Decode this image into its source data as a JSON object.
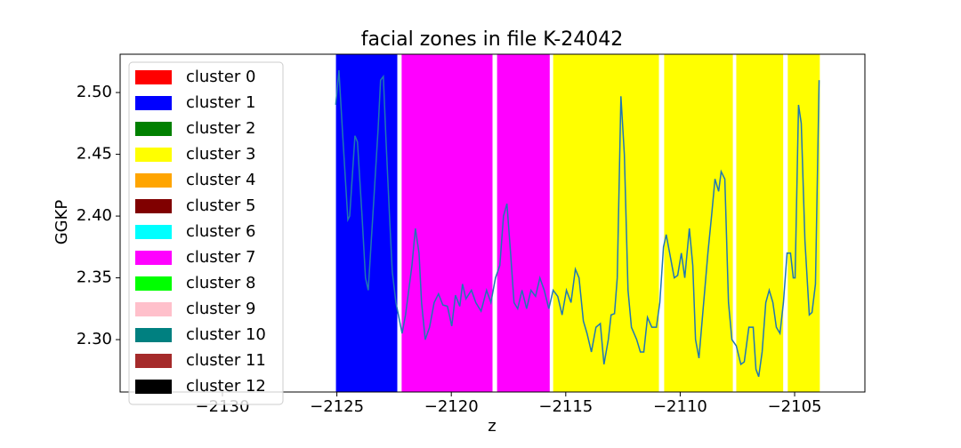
{
  "chart_data": {
    "type": "line",
    "title": "facial zones in file K-24042",
    "xlabel": "z",
    "ylabel": "GGKP",
    "xlim": [
      -2134.47,
      -2101.93
    ],
    "ylim": [
      2.2576,
      2.531
    ],
    "xticks": [
      {
        "value": -2130,
        "label": "−2130"
      },
      {
        "value": -2125,
        "label": "−2125"
      },
      {
        "value": -2120,
        "label": "−2120"
      },
      {
        "value": -2115,
        "label": "−2115"
      },
      {
        "value": -2110,
        "label": "−2110"
      },
      {
        "value": -2105,
        "label": "−2105"
      }
    ],
    "yticks": [
      {
        "value": 2.3,
        "label": "2.30"
      },
      2.35,
      {
        "value": 2.4,
        "label": "2.40"
      },
      2.45,
      {
        "value": 2.5,
        "label": "2.50"
      }
    ],
    "legend_loc": "upper left",
    "legend": [
      {
        "name": "cluster 0",
        "color": "#ff0000"
      },
      {
        "name": "cluster 1",
        "color": "#0000ff"
      },
      {
        "name": "cluster 2",
        "color": "#008000"
      },
      {
        "name": "cluster 3",
        "color": "#ffff00"
      },
      {
        "name": "cluster 4",
        "color": "#ffa500"
      },
      {
        "name": "cluster 5",
        "color": "#800000"
      },
      {
        "name": "cluster 6",
        "color": "#00ffff"
      },
      {
        "name": "cluster 7",
        "color": "#ff00ff"
      },
      {
        "name": "cluster 8",
        "color": "#00ff00"
      },
      {
        "name": "cluster 9",
        "color": "#ffc0cb"
      },
      {
        "name": "cluster 10",
        "color": "#008080"
      },
      {
        "name": "cluster 11",
        "color": "#a52a2a"
      },
      {
        "name": "cluster 12",
        "color": "#000000"
      }
    ],
    "zones": [
      {
        "x0": -2125.04,
        "x1": -2122.36,
        "cluster": 1
      },
      {
        "x0": -2122.17,
        "x1": -2118.2,
        "cluster": 7
      },
      {
        "x0": -2118.0,
        "x1": -2115.7,
        "cluster": 7
      },
      {
        "x0": -2115.55,
        "x1": -2110.93,
        "cluster": 3
      },
      {
        "x0": -2110.7,
        "x1": -2107.7,
        "cluster": 3
      },
      {
        "x0": -2107.55,
        "x1": -2105.5,
        "cluster": 3
      },
      {
        "x0": -2105.3,
        "x1": -2103.9,
        "cluster": 3
      }
    ],
    "x": [
      -2125.05,
      -2124.91,
      -2124.76,
      -2124.52,
      -2124.44,
      -2124.21,
      -2124.1,
      -2123.9,
      -2123.75,
      -2123.63,
      -2123.43,
      -2123.2,
      -2123.09,
      -2122.97,
      -2122.85,
      -2122.7,
      -2122.58,
      -2122.42,
      -2122.15,
      -2122.0,
      -2121.72,
      -2121.57,
      -2121.41,
      -2121.3,
      -2121.14,
      -2120.95,
      -2120.75,
      -2120.56,
      -2120.37,
      -2120.17,
      -2119.98,
      -2119.82,
      -2119.63,
      -2119.51,
      -2119.36,
      -2119.12,
      -2118.93,
      -2118.7,
      -2118.46,
      -2118.27,
      -2118.07,
      -2117.88,
      -2117.72,
      -2117.57,
      -2117.41,
      -2117.26,
      -2117.1,
      -2116.91,
      -2116.71,
      -2116.52,
      -2116.32,
      -2116.13,
      -2115.94,
      -2115.74,
      -2115.55,
      -2115.35,
      -2115.16,
      -2114.97,
      -2114.77,
      -2114.58,
      -2114.42,
      -2114.23,
      -2114.07,
      -2113.88,
      -2113.68,
      -2113.49,
      -2113.33,
      -2113.14,
      -2113.02,
      -2112.87,
      -2112.75,
      -2112.59,
      -2112.44,
      -2112.28,
      -2112.13,
      -2111.9,
      -2111.74,
      -2111.59,
      -2111.43,
      -2111.24,
      -2111.04,
      -2110.89,
      -2110.73,
      -2110.61,
      -2110.46,
      -2110.26,
      -2110.11,
      -2109.95,
      -2109.8,
      -2109.6,
      -2109.45,
      -2109.33,
      -2109.18,
      -2109.02,
      -2108.79,
      -2108.63,
      -2108.48,
      -2108.32,
      -2108.21,
      -2108.05,
      -2107.89,
      -2107.74,
      -2107.55,
      -2107.35,
      -2107.2,
      -2107.0,
      -2106.81,
      -2106.69,
      -2106.57,
      -2106.42,
      -2106.26,
      -2106.11,
      -2105.95,
      -2105.8,
      -2105.64,
      -2105.49,
      -2105.33,
      -2105.18,
      -2105.06,
      -2104.98,
      -2104.83,
      -2104.71,
      -2104.55,
      -2104.36,
      -2104.24,
      -2104.09,
      -2103.93
    ],
    "series": [
      {
        "color": "#1f77b4",
        "values": [
          2.49,
          2.518,
          2.47,
          2.397,
          2.4,
          2.465,
          2.46,
          2.4,
          2.35,
          2.34,
          2.4,
          2.47,
          2.51,
          2.513,
          2.46,
          2.4,
          2.355,
          2.33,
          2.305,
          2.32,
          2.36,
          2.39,
          2.37,
          2.33,
          2.3,
          2.31,
          2.33,
          2.337,
          2.328,
          2.327,
          2.311,
          2.336,
          2.327,
          2.345,
          2.333,
          2.34,
          2.33,
          2.323,
          2.34,
          2.33,
          2.35,
          2.36,
          2.4,
          2.41,
          2.37,
          2.33,
          2.325,
          2.34,
          2.325,
          2.34,
          2.335,
          2.35,
          2.34,
          2.325,
          2.34,
          2.335,
          2.32,
          2.34,
          2.33,
          2.357,
          2.35,
          2.315,
          2.305,
          2.29,
          2.31,
          2.313,
          2.28,
          2.3,
          2.32,
          2.321,
          2.35,
          2.497,
          2.45,
          2.34,
          2.31,
          2.3,
          2.29,
          2.29,
          2.318,
          2.31,
          2.31,
          2.33,
          2.375,
          2.385,
          2.37,
          2.35,
          2.352,
          2.37,
          2.35,
          2.39,
          2.36,
          2.3,
          2.285,
          2.32,
          2.37,
          2.4,
          2.43,
          2.42,
          2.436,
          2.43,
          2.33,
          2.3,
          2.295,
          2.28,
          2.282,
          2.31,
          2.31,
          2.276,
          2.27,
          2.29,
          2.33,
          2.34,
          2.33,
          2.31,
          2.305,
          2.33,
          2.37,
          2.37,
          2.35,
          2.35,
          2.49,
          2.475,
          2.38,
          2.32,
          2.322,
          2.345,
          2.51
        ]
      }
    ]
  }
}
